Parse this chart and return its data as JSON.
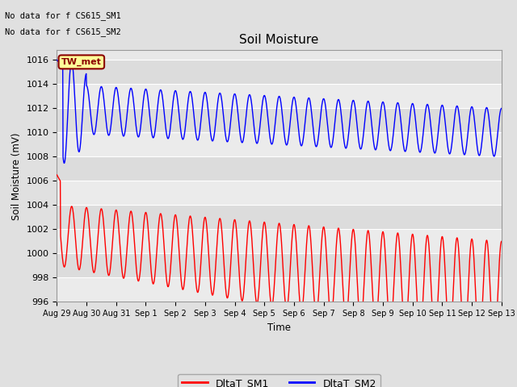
{
  "title": "Soil Moisture",
  "ylabel": "Soil Moisture (mV)",
  "xlabel": "Time",
  "no_data_text_1": "No data for f CS615_SM1",
  "no_data_text_2": "No data for f CS615_SM2",
  "annotation_text": "TW_met",
  "annotation_color": "#8B0000",
  "annotation_bg": "#FFFF99",
  "ylim": [
    996,
    1016.8
  ],
  "yticks": [
    996,
    998,
    1000,
    1002,
    1004,
    1006,
    1008,
    1010,
    1012,
    1014,
    1016
  ],
  "fig_bg": "#E0E0E0",
  "plot_bg": "#E8E8E8",
  "plot_bg_alt": "#D8D8D8",
  "grid_color": "#FFFFFF",
  "sm1_color": "red",
  "sm2_color": "blue",
  "tick_labels": [
    "Aug 29",
    "Aug 30",
    "Aug 31",
    "Sep 1",
    "Sep 2",
    "Sep 3",
    "Sep 4",
    "Sep 5",
    "Sep 6",
    "Sep 7",
    "Sep 8",
    "Sep 9",
    "Sep 10",
    "Sep 11",
    "Sep 12",
    "Sep 13"
  ],
  "n_days": 15
}
